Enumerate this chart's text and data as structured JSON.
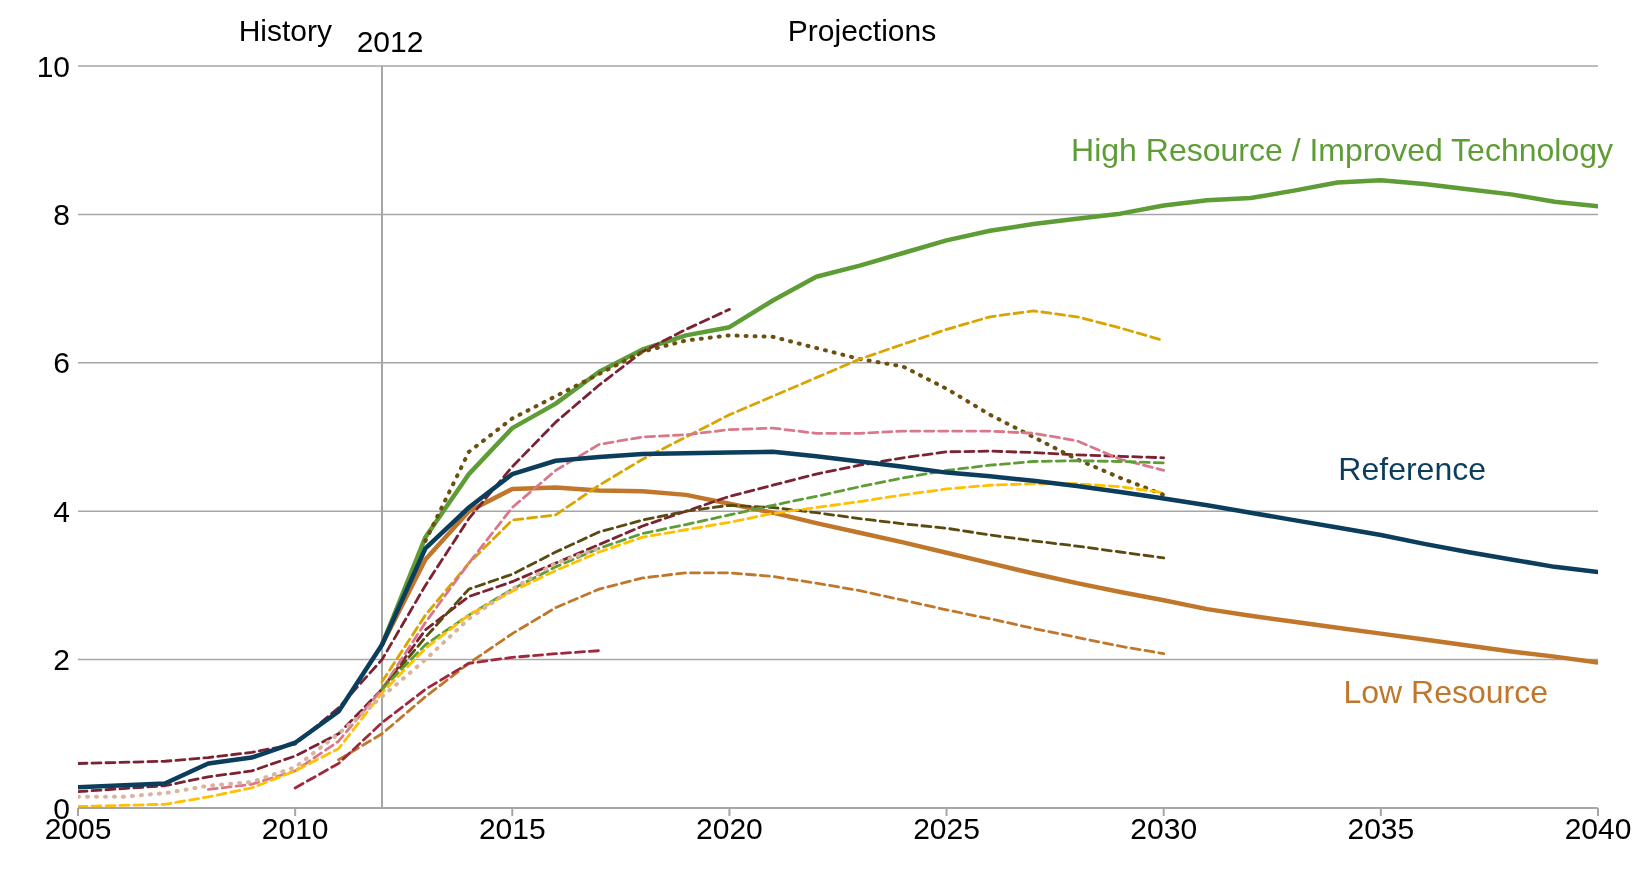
{
  "chart_data": {
    "type": "line",
    "annotations": [
      "History",
      "Projections"
    ],
    "xlim": [
      2005,
      2040
    ],
    "xticks": [
      2005,
      2010,
      2015,
      2020,
      2025,
      2030,
      2035,
      2040
    ],
    "ylim": [
      0,
      10
    ],
    "yticks": [
      0,
      2,
      4,
      6,
      8,
      10
    ],
    "grid": "y",
    "legend": false,
    "marker": "none",
    "ref_lines": [
      {
        "axis": "x",
        "value": 2012,
        "label": "2012",
        "color": "#a6a6a6",
        "line_style": "solid"
      }
    ],
    "series": [
      {
        "name": "High Resource / Improved Technology",
        "color": "#5e9c35",
        "line_style": "solid",
        "x": [
          2012,
          2013,
          2014,
          2015,
          2016,
          2017,
          2018,
          2019,
          2020,
          2021,
          2022,
          2023,
          2024,
          2025,
          2026,
          2027,
          2028,
          2029,
          2030,
          2031,
          2032,
          2033,
          2034,
          2035,
          2036,
          2037,
          2038,
          2039,
          2040
        ],
        "values": [
          2.2,
          3.65,
          4.5,
          5.12,
          5.45,
          5.88,
          6.18,
          6.37,
          6.48,
          6.84,
          7.16,
          7.31,
          7.48,
          7.65,
          7.78,
          7.87,
          7.94,
          8.01,
          8.12,
          8.19,
          8.22,
          8.32,
          8.43,
          8.46,
          8.41,
          8.34,
          8.27,
          8.17,
          8.11
        ]
      },
      {
        "name": "Low Resource",
        "color": "#c0762b",
        "line_style": "solid",
        "x": [
          2012,
          2013,
          2014,
          2015,
          2016,
          2017,
          2018,
          2019,
          2020,
          2021,
          2022,
          2023,
          2024,
          2025,
          2026,
          2027,
          2028,
          2029,
          2030,
          2031,
          2032,
          2033,
          2034,
          2035,
          2036,
          2037,
          2038,
          2039,
          2040
        ],
        "values": [
          2.2,
          3.35,
          4.0,
          4.3,
          4.32,
          4.28,
          4.27,
          4.22,
          4.1,
          3.98,
          3.84,
          3.71,
          3.58,
          3.44,
          3.3,
          3.16,
          3.03,
          2.91,
          2.8,
          2.68,
          2.59,
          2.51,
          2.43,
          2.35,
          2.27,
          2.19,
          2.11,
          2.04,
          1.96
        ]
      },
      {
        "color": "#7b2233",
        "line_style": "dashed",
        "x": [
          2005,
          2007,
          2008,
          2009,
          2010,
          2011,
          2012,
          2013,
          2014,
          2015,
          2016,
          2017,
          2018,
          2019,
          2020
        ],
        "values": [
          0.6,
          0.63,
          0.68,
          0.75,
          0.86,
          1.35,
          2.0,
          3.0,
          3.9,
          4.6,
          5.2,
          5.7,
          6.15,
          6.45,
          6.72
        ]
      },
      {
        "color": "#7b2233",
        "line_style": "dashed",
        "x": [
          2005,
          2007,
          2008,
          2009,
          2010,
          2011,
          2012,
          2013,
          2014,
          2015,
          2016,
          2017,
          2018,
          2019,
          2020,
          2021,
          2022,
          2023,
          2024,
          2025,
          2026,
          2027,
          2028,
          2029,
          2030
        ],
        "values": [
          0.22,
          0.3,
          0.42,
          0.5,
          0.7,
          1.0,
          1.6,
          2.4,
          2.85,
          3.05,
          3.3,
          3.55,
          3.8,
          4.0,
          4.2,
          4.35,
          4.5,
          4.62,
          4.72,
          4.8,
          4.81,
          4.79,
          4.76,
          4.74,
          4.72
        ]
      },
      {
        "color": "#6b5010",
        "line_style": "dotted",
        "x": [
          2013,
          2014,
          2015,
          2016,
          2017,
          2018,
          2019,
          2020,
          2021,
          2022,
          2023,
          2024,
          2025,
          2026,
          2027,
          2028,
          2029,
          2030
        ],
        "values": [
          3.6,
          4.8,
          5.25,
          5.55,
          5.85,
          6.15,
          6.3,
          6.37,
          6.35,
          6.2,
          6.05,
          5.95,
          5.65,
          5.3,
          5.0,
          4.7,
          4.45,
          4.22
        ]
      },
      {
        "color": "#d9a400",
        "line_style": "dashed",
        "x": [
          2012,
          2013,
          2014,
          2015,
          2016,
          2017,
          2018,
          2019,
          2020,
          2021,
          2022,
          2023,
          2024,
          2025,
          2026,
          2027,
          2028,
          2029,
          2030
        ],
        "values": [
          1.7,
          2.6,
          3.3,
          3.88,
          3.95,
          4.35,
          4.7,
          5.0,
          5.3,
          5.55,
          5.8,
          6.05,
          6.25,
          6.45,
          6.62,
          6.7,
          6.62,
          6.47,
          6.3
        ]
      },
      {
        "color": "#d9788a",
        "line_style": "dashed",
        "x": [
          2008,
          2009,
          2010,
          2011,
          2012,
          2013,
          2014,
          2015,
          2016,
          2017,
          2018,
          2019,
          2020,
          2021,
          2022,
          2023,
          2024,
          2025,
          2026,
          2027,
          2028,
          2029,
          2030
        ],
        "values": [
          0.25,
          0.32,
          0.5,
          0.9,
          1.6,
          2.5,
          3.3,
          4.05,
          4.55,
          4.9,
          5.0,
          5.03,
          5.1,
          5.12,
          5.05,
          5.05,
          5.08,
          5.08,
          5.08,
          5.05,
          4.95,
          4.7,
          4.55
        ]
      },
      {
        "color": "#5a4a10",
        "line_style": "dashed",
        "x": [
          2012,
          2013,
          2014,
          2015,
          2016,
          2017,
          2018,
          2019,
          2020,
          2021,
          2022,
          2023,
          2024,
          2025,
          2026,
          2027,
          2028,
          2029,
          2030
        ],
        "values": [
          1.6,
          2.3,
          2.95,
          3.15,
          3.45,
          3.72,
          3.88,
          4.0,
          4.08,
          4.05,
          3.98,
          3.9,
          3.83,
          3.77,
          3.68,
          3.6,
          3.53,
          3.45,
          3.37
        ]
      },
      {
        "color": "#5e9c35",
        "line_style": "dashed",
        "x": [
          2012,
          2013,
          2014,
          2015,
          2016,
          2017,
          2018,
          2019,
          2020,
          2021,
          2022,
          2023,
          2024,
          2025,
          2026,
          2027,
          2028,
          2029,
          2030
        ],
        "values": [
          1.6,
          2.2,
          2.6,
          2.95,
          3.25,
          3.5,
          3.7,
          3.82,
          3.95,
          4.08,
          4.2,
          4.33,
          4.45,
          4.55,
          4.62,
          4.67,
          4.68,
          4.67,
          4.65
        ]
      },
      {
        "color": "#ffc000",
        "line_style": "dashed",
        "x": [
          2005,
          2007,
          2008,
          2009,
          2010,
          2011,
          2012,
          2013,
          2014,
          2015,
          2016,
          2017,
          2018,
          2019,
          2020,
          2021,
          2022,
          2023,
          2024,
          2025,
          2026,
          2027,
          2028,
          2029,
          2030
        ],
        "values": [
          0.02,
          0.05,
          0.15,
          0.27,
          0.5,
          0.8,
          1.55,
          2.15,
          2.6,
          2.92,
          3.2,
          3.45,
          3.65,
          3.75,
          3.85,
          3.97,
          4.05,
          4.13,
          4.22,
          4.3,
          4.35,
          4.37,
          4.37,
          4.33,
          4.25
        ]
      },
      {
        "color": "#d9b3a0",
        "line_style": "dotted",
        "x": [
          2005,
          2006,
          2007,
          2008,
          2009,
          2010,
          2011,
          2012,
          2013,
          2014,
          2015,
          2016,
          2017
        ],
        "values": [
          0.15,
          0.15,
          0.2,
          0.3,
          0.35,
          0.55,
          1.0,
          1.5,
          2.0,
          2.55,
          2.95,
          3.3,
          3.5
        ]
      },
      {
        "color": "#c0762b",
        "line_style": "dashed",
        "x": [
          2011,
          2012,
          2013,
          2014,
          2015,
          2016,
          2017,
          2018,
          2019,
          2020,
          2021,
          2022,
          2023,
          2024,
          2025,
          2026,
          2027,
          2028,
          2029,
          2030
        ],
        "values": [
          0.65,
          1.0,
          1.5,
          1.95,
          2.35,
          2.7,
          2.95,
          3.1,
          3.17,
          3.17,
          3.12,
          3.03,
          2.93,
          2.8,
          2.67,
          2.55,
          2.42,
          2.3,
          2.18,
          2.08
        ]
      },
      {
        "color": "#a0283c",
        "line_style": "dashed",
        "x": [
          2010,
          2011,
          2012,
          2013,
          2014,
          2015,
          2016,
          2017
        ],
        "values": [
          0.27,
          0.6,
          1.15,
          1.6,
          1.95,
          2.03,
          2.08,
          2.12
        ]
      },
      {
        "name": "Reference",
        "color": "#0b3d5c",
        "line_style": "solid",
        "x": [
          2005,
          2007,
          2008,
          2009,
          2010,
          2011,
          2012,
          2013,
          2014,
          2015,
          2016,
          2017,
          2018,
          2019,
          2020,
          2021,
          2022,
          2023,
          2024,
          2025,
          2026,
          2027,
          2028,
          2029,
          2030,
          2031,
          2032,
          2033,
          2034,
          2035,
          2036,
          2037,
          2038,
          2039,
          2040
        ],
        "values": [
          0.28,
          0.33,
          0.6,
          0.68,
          0.88,
          1.3,
          2.2,
          3.5,
          4.05,
          4.5,
          4.68,
          4.73,
          4.77,
          4.78,
          4.79,
          4.8,
          4.74,
          4.67,
          4.6,
          4.52,
          4.47,
          4.41,
          4.34,
          4.26,
          4.17,
          4.08,
          3.98,
          3.88,
          3.78,
          3.68,
          3.56,
          3.45,
          3.35,
          3.25,
          3.18
        ]
      }
    ]
  }
}
